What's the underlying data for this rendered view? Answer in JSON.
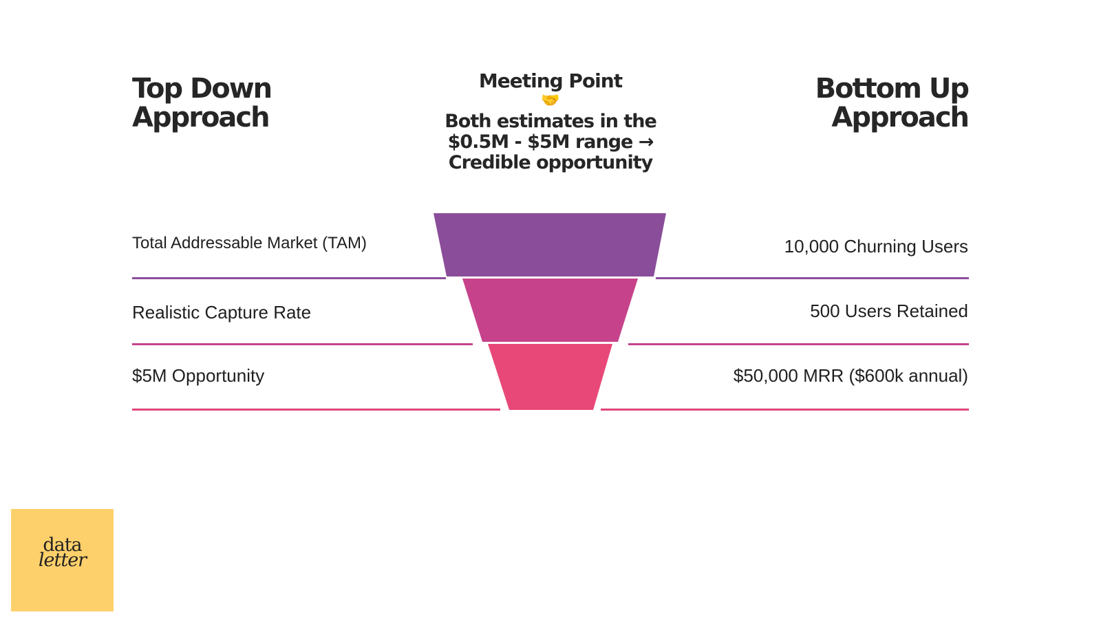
{
  "left_column": {
    "heading_line1": "Top Down",
    "heading_line2": "Approach",
    "rows": [
      "Total Addressable Market (TAM)",
      "Realistic Capture Rate",
      "$5M Opportunity"
    ]
  },
  "right_column": {
    "heading_line1": "Bottom Up",
    "heading_line2": "Approach",
    "rows": [
      "10,000 Churning Users",
      "500 Users Retained",
      "$50,000 MRR ($600k annual)"
    ]
  },
  "meeting_point": {
    "title": "Meeting Point",
    "emoji": "🤝",
    "text": "Both estimates in the $0.5M - $5M range → Credible opportunity"
  },
  "funnel": {
    "stage_colors": [
      "#8a4d9a",
      "#c6428b",
      "#e84877"
    ],
    "line_colors": [
      "#8a4d9a",
      "#c6428b",
      "#e0467c"
    ]
  },
  "logo": {
    "line1": "data",
    "line2": "letter",
    "background": "#fed06b"
  }
}
